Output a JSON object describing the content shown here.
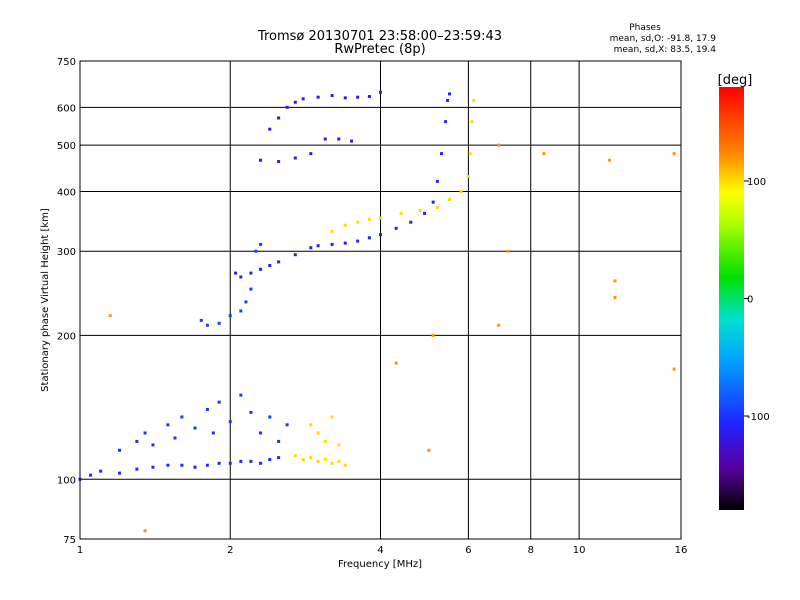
{
  "chart_data": {
    "type": "scatter",
    "title": "Tromsø 20130701 23:58:00–23:59:43",
    "subtitle": "RwPretec (8p)",
    "stats": {
      "heading": "Phases",
      "line_o": "mean, sd,O: -91.8, 17.9",
      "line_x": "mean, sd,X:  83.5, 19.4"
    },
    "xlabel": "Frequency [MHz]",
    "ylabel": "Stationary phase Virtual Height [km]",
    "x_scale": "log",
    "y_scale": "log",
    "xlim": [
      1,
      16
    ],
    "ylim": [
      75,
      750
    ],
    "x_ticks": [
      1,
      2,
      4,
      6,
      8,
      10,
      16
    ],
    "x_tick_labels": [
      "1",
      "2",
      "4",
      "6",
      "8",
      "10",
      "16"
    ],
    "y_ticks": [
      75,
      100,
      200,
      300,
      400,
      500,
      600,
      750
    ],
    "y_tick_labels": [
      "75",
      "100",
      "200",
      "300",
      "400",
      "500",
      "600",
      "750"
    ],
    "grid": true,
    "colorbar": {
      "label": "[deg]",
      "range": [
        -180,
        180
      ],
      "ticks": [
        100,
        0,
        -100
      ],
      "tick_labels": [
        "100",
        "0",
        "-100"
      ]
    },
    "traces": [
      {
        "desc": "low E-region trace",
        "phase": -105,
        "points": [
          [
            1.0,
            100
          ],
          [
            1.05,
            102
          ],
          [
            1.1,
            104
          ],
          [
            1.2,
            103
          ],
          [
            1.3,
            105
          ],
          [
            1.4,
            106
          ],
          [
            1.5,
            107
          ],
          [
            1.6,
            107
          ],
          [
            1.7,
            106
          ],
          [
            1.8,
            107
          ],
          [
            1.9,
            108
          ],
          [
            2.0,
            108
          ],
          [
            2.1,
            109
          ],
          [
            2.2,
            109
          ],
          [
            2.3,
            108
          ],
          [
            2.4,
            110
          ],
          [
            2.5,
            111
          ]
        ]
      },
      {
        "desc": "E-region upper scatter",
        "phase": -100,
        "points": [
          [
            1.2,
            115
          ],
          [
            1.3,
            120
          ],
          [
            1.35,
            125
          ],
          [
            1.4,
            118
          ],
          [
            1.5,
            130
          ],
          [
            1.55,
            122
          ],
          [
            1.6,
            135
          ],
          [
            1.7,
            128
          ],
          [
            1.8,
            140
          ],
          [
            1.85,
            125
          ],
          [
            1.9,
            145
          ],
          [
            2.0,
            132
          ],
          [
            2.1,
            150
          ],
          [
            2.2,
            138
          ],
          [
            2.3,
            125
          ],
          [
            2.4,
            135
          ],
          [
            2.5,
            120
          ],
          [
            2.6,
            130
          ]
        ]
      },
      {
        "desc": "E-region mid-frequency cluster",
        "phase": 100,
        "points": [
          [
            2.7,
            112
          ],
          [
            2.8,
            110
          ],
          [
            2.9,
            111
          ],
          [
            3.0,
            109
          ],
          [
            3.1,
            110
          ],
          [
            3.2,
            108
          ],
          [
            3.3,
            109
          ],
          [
            3.4,
            107
          ],
          [
            2.9,
            130
          ],
          [
            3.0,
            125
          ],
          [
            3.1,
            120
          ],
          [
            3.2,
            135
          ],
          [
            3.3,
            118
          ]
        ]
      },
      {
        "desc": "F-region O trace",
        "phase": -110,
        "points": [
          [
            2.05,
            270
          ],
          [
            2.1,
            265
          ],
          [
            2.2,
            270
          ],
          [
            2.3,
            275
          ],
          [
            2.4,
            280
          ],
          [
            2.5,
            285
          ],
          [
            2.7,
            295
          ],
          [
            2.9,
            305
          ],
          [
            3.0,
            308
          ],
          [
            3.2,
            310
          ],
          [
            3.4,
            312
          ],
          [
            3.6,
            315
          ],
          [
            3.8,
            320
          ],
          [
            4.0,
            325
          ],
          [
            4.3,
            335
          ],
          [
            4.6,
            345
          ],
          [
            4.9,
            360
          ],
          [
            5.1,
            380
          ],
          [
            5.2,
            420
          ],
          [
            5.3,
            480
          ],
          [
            5.4,
            560
          ],
          [
            5.45,
            620
          ],
          [
            5.5,
            640
          ]
        ]
      },
      {
        "desc": "F-region X trace",
        "phase": 100,
        "points": [
          [
            3.2,
            330
          ],
          [
            3.4,
            340
          ],
          [
            3.6,
            345
          ],
          [
            3.8,
            350
          ],
          [
            4.0,
            352
          ],
          [
            4.4,
            360
          ],
          [
            4.8,
            365
          ],
          [
            5.2,
            370
          ],
          [
            5.5,
            385
          ],
          [
            5.8,
            400
          ],
          [
            6.0,
            430
          ],
          [
            6.05,
            480
          ],
          [
            6.1,
            560
          ],
          [
            6.15,
            620
          ]
        ]
      },
      {
        "desc": "F-region lower branch",
        "phase": -95,
        "points": [
          [
            1.75,
            215
          ],
          [
            1.8,
            210
          ],
          [
            1.9,
            212
          ],
          [
            2.0,
            220
          ],
          [
            2.1,
            225
          ],
          [
            2.15,
            235
          ],
          [
            2.2,
            250
          ],
          [
            2.25,
            300
          ],
          [
            2.3,
            310
          ]
        ]
      },
      {
        "desc": "second-hop trace",
        "phase": -115,
        "points": [
          [
            2.4,
            540
          ],
          [
            2.5,
            570
          ],
          [
            2.6,
            600
          ],
          [
            2.7,
            615
          ],
          [
            2.8,
            625
          ],
          [
            3.0,
            630
          ],
          [
            3.2,
            635
          ],
          [
            3.4,
            628
          ],
          [
            3.6,
            630
          ],
          [
            3.8,
            632
          ],
          [
            4.0,
            645
          ],
          [
            2.3,
            465
          ],
          [
            2.5,
            462
          ],
          [
            2.7,
            470
          ],
          [
            2.9,
            480
          ],
          [
            3.1,
            515
          ],
          [
            3.3,
            515
          ],
          [
            3.5,
            510
          ]
        ]
      },
      {
        "desc": "isolated points",
        "phase": 120,
        "points": [
          [
            6.9,
            500
          ],
          [
            7.2,
            300
          ],
          [
            8.5,
            480
          ],
          [
            11.5,
            465
          ],
          [
            11.8,
            260
          ],
          [
            11.8,
            240
          ],
          [
            15.5,
            480
          ],
          [
            15.5,
            170
          ],
          [
            6.9,
            210
          ],
          [
            5.1,
            200
          ],
          [
            5.0,
            115
          ],
          [
            1.15,
            220
          ],
          [
            1.35,
            78
          ],
          [
            4.3,
            175
          ]
        ]
      }
    ]
  }
}
